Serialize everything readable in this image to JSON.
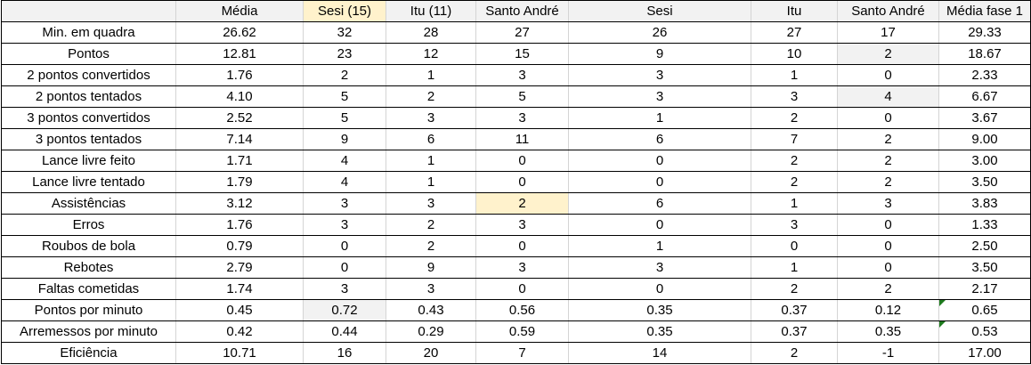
{
  "headers": [
    "",
    "Média",
    "Sesi (15)",
    "Itu (11)",
    "Santo André",
    "Sesi",
    "Itu",
    "Santo André",
    "Média fase 1"
  ],
  "rows": [
    [
      "Min. em quadra",
      "26.62",
      "32",
      "28",
      "27",
      "26",
      "27",
      "17",
      "29.33"
    ],
    [
      "Pontos",
      "12.81",
      "23",
      "12",
      "15",
      "9",
      "10",
      "2",
      "18.67"
    ],
    [
      "2 pontos convertidos",
      "1.76",
      "2",
      "1",
      "3",
      "3",
      "1",
      "0",
      "2.33"
    ],
    [
      "2 pontos tentados",
      "4.10",
      "5",
      "2",
      "5",
      "3",
      "3",
      "4",
      "6.67"
    ],
    [
      "3 pontos convertidos",
      "2.52",
      "5",
      "3",
      "3",
      "1",
      "2",
      "0",
      "3.67"
    ],
    [
      "3 pontos tentados",
      "7.14",
      "9",
      "6",
      "11",
      "6",
      "7",
      "2",
      "9.00"
    ],
    [
      "Lance livre feito",
      "1.71",
      "4",
      "1",
      "0",
      "0",
      "2",
      "2",
      "3.00"
    ],
    [
      "Lance livre tentado",
      "1.79",
      "4",
      "1",
      "0",
      "0",
      "2",
      "2",
      "3.50"
    ],
    [
      "Assistências",
      "3.12",
      "3",
      "3",
      "2",
      "6",
      "1",
      "3",
      "3.83"
    ],
    [
      "Erros",
      "1.76",
      "3",
      "2",
      "3",
      "0",
      "3",
      "0",
      "1.33"
    ],
    [
      "Roubos de bola",
      "0.79",
      "0",
      "2",
      "0",
      "1",
      "0",
      "0",
      "2.50"
    ],
    [
      "Rebotes",
      "2.79",
      "0",
      "9",
      "3",
      "3",
      "1",
      "0",
      "3.50"
    ],
    [
      "Faltas cometidas",
      "1.74",
      "3",
      "3",
      "0",
      "0",
      "2",
      "2",
      "2.17"
    ],
    [
      "Pontos por minuto",
      "0.45",
      "0.72",
      "0.43",
      "0.56",
      "0.35",
      "0.37",
      "0.12",
      "0.65"
    ],
    [
      "Arremessos por minuto",
      "0.42",
      "0.44",
      "0.29",
      "0.59",
      "0.35",
      "0.37",
      "0.35",
      "0.53"
    ],
    [
      "Eficiência",
      "10.71",
      "16",
      "20",
      "7",
      "14",
      "2",
      "-1",
      "17.00"
    ]
  ],
  "highlights": {
    "peach_color": "#fff2cc",
    "grey_color": "#f2f2f2",
    "peach_cells": [
      [
        0,
        2
      ],
      [
        9,
        4
      ]
    ],
    "grey_cells": [
      [
        2,
        7
      ],
      [
        4,
        7
      ],
      [
        14,
        2
      ]
    ],
    "flag_cells": [
      [
        14,
        8
      ],
      [
        15,
        8
      ]
    ],
    "flag_color": "#1e7b1e"
  }
}
